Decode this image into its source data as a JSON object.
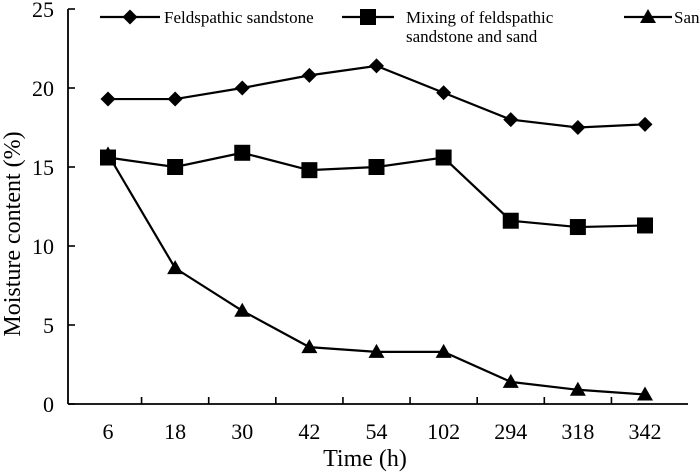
{
  "chart_data": {
    "type": "line",
    "title": "",
    "xlabel": "Time (h)",
    "ylabel": "Moisture content  (%)",
    "categories": [
      "6",
      "18",
      "30",
      "42",
      "54",
      "102",
      "294",
      "318",
      "342"
    ],
    "ylim": [
      0,
      25
    ],
    "yticks": [
      "0",
      "5",
      "10",
      "15",
      "20",
      "25"
    ],
    "grid": false,
    "legend_position": "top",
    "series": [
      {
        "name": "Feldspathic sandstone",
        "marker": "diamond",
        "values": [
          19.3,
          19.3,
          20.0,
          20.8,
          21.4,
          19.7,
          18.0,
          17.5,
          17.7
        ]
      },
      {
        "name": "Mixing of feldspathic sandstone and sand",
        "name_lines": [
          "Mixing of feldspathic",
          "sandstone and sand"
        ],
        "marker": "square",
        "values": [
          15.6,
          15.0,
          15.9,
          14.8,
          15.0,
          15.6,
          11.6,
          11.2,
          11.3
        ]
      },
      {
        "name": "Sand",
        "marker": "triangle",
        "values": [
          15.8,
          8.6,
          5.9,
          3.6,
          3.3,
          3.3,
          1.4,
          0.9,
          0.6
        ]
      }
    ],
    "colors": {
      "line": "#000000",
      "background": "#ffffff"
    }
  }
}
